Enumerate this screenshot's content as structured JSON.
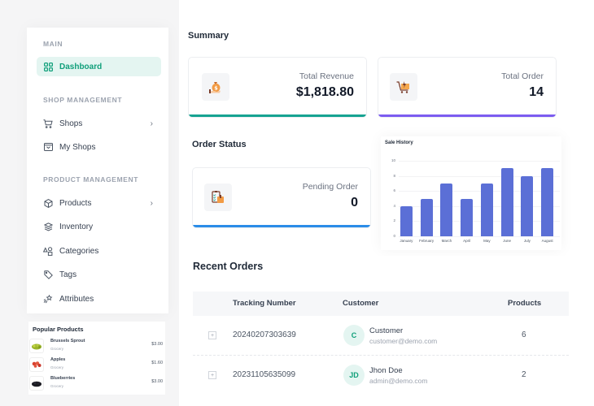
{
  "sidebar": {
    "sections": [
      {
        "heading": "MAIN"
      },
      {
        "heading": "SHOP MANAGEMENT"
      },
      {
        "heading": "PRODUCT MANAGEMENT"
      }
    ],
    "items": [
      {
        "label": "Dashboard",
        "icon": "grid-icon",
        "active": true
      },
      {
        "label": "Shops",
        "icon": "cart-icon",
        "has_children": true
      },
      {
        "label": "My Shops",
        "icon": "shop-window-icon"
      },
      {
        "label": "Products",
        "icon": "box-icon",
        "has_children": true
      },
      {
        "label": "Inventory",
        "icon": "layers-icon"
      },
      {
        "label": "Categories",
        "icon": "shapes-icon"
      },
      {
        "label": "Tags",
        "icon": "tag-icon"
      },
      {
        "label": "Attributes",
        "icon": "sparkle-icon"
      }
    ],
    "chevron": "›"
  },
  "popular_products": {
    "title": "Popular Products",
    "items": [
      {
        "name": "Brussels Sprout",
        "category": "Grocery",
        "price": "$3.00"
      },
      {
        "name": "Apples",
        "category": "Grocery",
        "price": "$1.60"
      },
      {
        "name": "Blueberries",
        "category": "Grocery",
        "price": "$3.00"
      }
    ]
  },
  "summary": {
    "title": "Summary",
    "cards": [
      {
        "label": "Total Revenue",
        "value": "$1,818.80",
        "accent": "#16a391"
      },
      {
        "label": "Total Order",
        "value": "14",
        "accent": "#7c5cf0"
      }
    ]
  },
  "order_status": {
    "title": "Order Status",
    "cards": [
      {
        "label": "Pending Order",
        "value": "0",
        "accent": "#2b8de8"
      }
    ]
  },
  "chart_data": {
    "type": "bar",
    "title": "Sale History",
    "categories": [
      "January",
      "February",
      "March",
      "April",
      "May",
      "June",
      "July",
      "August"
    ],
    "values": [
      4,
      5,
      7,
      5,
      7,
      9,
      8,
      9
    ],
    "yticks": [
      "0",
      "2",
      "4",
      "6",
      "8",
      "10"
    ],
    "ylim": [
      0,
      10
    ],
    "xlabel": "",
    "ylabel": "",
    "grid": true,
    "color": "#5b6fd6"
  },
  "recent_orders": {
    "title": "Recent Orders",
    "columns": [
      "Tracking Number",
      "Customer",
      "Products"
    ],
    "rows": [
      {
        "tracking": "20240207303639",
        "initials": "C",
        "name": "Customer",
        "email": "customer@demo.com",
        "products": "6"
      },
      {
        "tracking": "20231105635099",
        "initials": "JD",
        "name": "Jhon Doe",
        "email": "admin@demo.com",
        "products": "2"
      }
    ],
    "expand_symbol": "+"
  }
}
